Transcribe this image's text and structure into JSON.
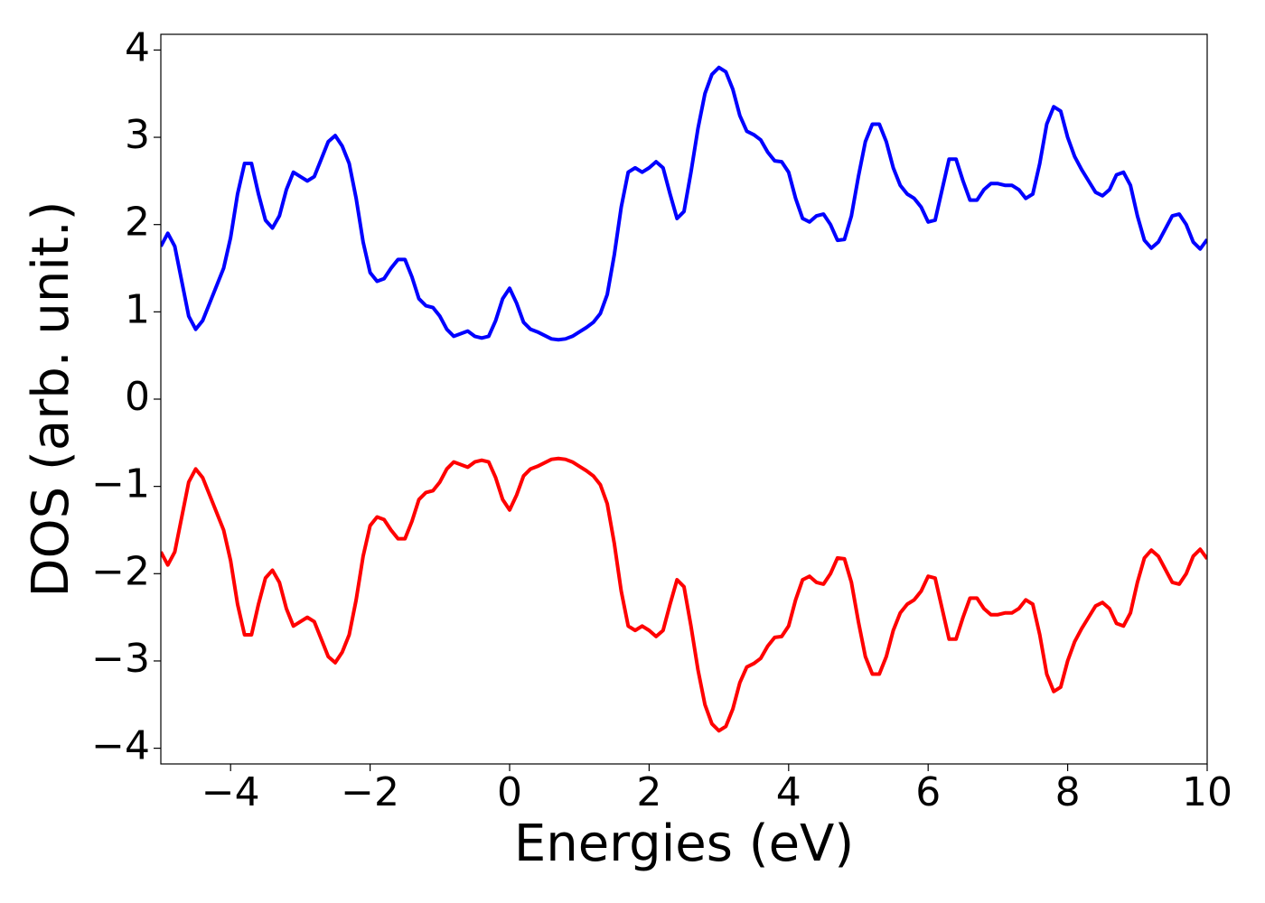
{
  "chart_data": {
    "type": "line",
    "x_label": "Energies (eV)",
    "y_label": "DOS (arb. unit.)",
    "x": [
      -5,
      -4.9,
      -4.8,
      -4.7,
      -4.6,
      -4.5,
      -4.4,
      -4.3,
      -4.2,
      -4.1,
      -4,
      -3.9,
      -3.8,
      -3.7,
      -3.6,
      -3.5,
      -3.4,
      -3.3,
      -3.2,
      -3.1,
      -3,
      -2.9,
      -2.8,
      -2.7,
      -2.6,
      -2.5,
      -2.4,
      -2.3,
      -2.2,
      -2.1,
      -2,
      -1.9,
      -1.8,
      -1.7,
      -1.6,
      -1.5,
      -1.4,
      -1.3,
      -1.2,
      -1.1,
      -1,
      -0.9,
      -0.8,
      -0.7,
      -0.6,
      -0.5,
      -0.4,
      -0.3,
      -0.2,
      -0.1,
      0,
      0.1,
      0.2,
      0.3,
      0.4,
      0.5,
      0.6,
      0.7,
      0.8,
      0.9,
      1,
      1.1,
      1.2,
      1.3,
      1.4,
      1.5,
      1.6,
      1.7,
      1.8,
      1.9,
      2,
      2.1,
      2.2,
      2.3,
      2.4,
      2.5,
      2.6,
      2.7,
      2.8,
      2.9,
      3,
      3.1,
      3.2,
      3.3,
      3.4,
      3.5,
      3.6,
      3.7,
      3.8,
      3.9,
      4,
      4.1,
      4.2,
      4.3,
      4.4,
      4.5,
      4.6,
      4.7,
      4.8,
      4.9,
      5,
      5.1,
      5.2,
      5.3,
      5.4,
      5.5,
      5.6,
      5.7,
      5.8,
      5.9,
      6,
      6.1,
      6.2,
      6.3,
      6.4,
      6.5,
      6.6,
      6.7,
      6.8,
      6.9,
      7,
      7.1,
      7.2,
      7.3,
      7.4,
      7.5,
      7.6,
      7.7,
      7.8,
      7.9,
      8,
      8.1,
      8.2,
      8.3,
      8.4,
      8.5,
      8.6,
      8.7,
      8.8,
      8.9,
      9,
      9.1,
      9.2,
      9.3,
      9.4,
      9.5,
      9.6,
      9.7,
      9.8,
      9.9,
      10
    ],
    "series": [
      {
        "color": "#0000ff",
        "values": [
          1.75,
          1.9,
          1.75,
          1.35,
          0.95,
          0.8,
          0.9,
          1.1,
          1.3,
          1.5,
          1.85,
          2.35,
          2.7,
          2.7,
          2.35,
          2.05,
          1.96,
          2.1,
          2.4,
          2.6,
          2.55,
          2.5,
          2.55,
          2.75,
          2.95,
          3.02,
          2.9,
          2.7,
          2.3,
          1.8,
          1.45,
          1.35,
          1.38,
          1.5,
          1.6,
          1.6,
          1.4,
          1.15,
          1.07,
          1.05,
          0.95,
          0.8,
          0.72,
          0.75,
          0.78,
          0.72,
          0.7,
          0.72,
          0.9,
          1.15,
          1.27,
          1.1,
          0.88,
          0.8,
          0.77,
          0.73,
          0.69,
          0.68,
          0.69,
          0.72,
          0.77,
          0.82,
          0.88,
          0.98,
          1.2,
          1.65,
          2.2,
          2.6,
          2.65,
          2.6,
          2.65,
          2.72,
          2.65,
          2.35,
          2.07,
          2.15,
          2.6,
          3.1,
          3.5,
          3.72,
          3.8,
          3.75,
          3.55,
          3.25,
          3.07,
          3.03,
          2.97,
          2.83,
          2.73,
          2.72,
          2.6,
          2.3,
          2.07,
          2.03,
          2.1,
          2.12,
          2,
          1.82,
          1.83,
          2.1,
          2.55,
          2.95,
          3.15,
          3.15,
          2.95,
          2.65,
          2.45,
          2.35,
          2.3,
          2.2,
          2.03,
          2.05,
          2.4,
          2.75,
          2.75,
          2.5,
          2.28,
          2.28,
          2.4,
          2.47,
          2.47,
          2.45,
          2.45,
          2.4,
          2.3,
          2.35,
          2.7,
          3.15,
          3.35,
          3.3,
          3,
          2.78,
          2.63,
          2.5,
          2.37,
          2.33,
          2.4,
          2.57,
          2.6,
          2.45,
          2.1,
          1.82,
          1.73,
          1.8,
          1.95,
          2.1,
          2.12,
          2,
          1.8,
          1.72,
          1.83
        ]
      },
      {
        "color": "#ff0000",
        "values": [
          -1.75,
          -1.9,
          -1.75,
          -1.35,
          -0.95,
          -0.8,
          -0.9,
          -1.1,
          -1.3,
          -1.5,
          -1.85,
          -2.35,
          -2.7,
          -2.7,
          -2.35,
          -2.05,
          -1.96,
          -2.1,
          -2.4,
          -2.6,
          -2.55,
          -2.5,
          -2.55,
          -2.75,
          -2.95,
          -3.02,
          -2.9,
          -2.7,
          -2.3,
          -1.8,
          -1.45,
          -1.35,
          -1.38,
          -1.5,
          -1.6,
          -1.6,
          -1.4,
          -1.15,
          -1.07,
          -1.05,
          -0.95,
          -0.8,
          -0.72,
          -0.75,
          -0.78,
          -0.72,
          -0.7,
          -0.72,
          -0.9,
          -1.15,
          -1.27,
          -1.1,
          -0.88,
          -0.8,
          -0.77,
          -0.73,
          -0.69,
          -0.68,
          -0.69,
          -0.72,
          -0.77,
          -0.82,
          -0.88,
          -0.98,
          -1.2,
          -1.65,
          -2.2,
          -2.6,
          -2.65,
          -2.6,
          -2.65,
          -2.72,
          -2.65,
          -2.35,
          -2.07,
          -2.15,
          -2.6,
          -3.1,
          -3.5,
          -3.72,
          -3.8,
          -3.75,
          -3.55,
          -3.25,
          -3.07,
          -3.03,
          -2.97,
          -2.83,
          -2.73,
          -2.72,
          -2.6,
          -2.3,
          -2.07,
          -2.03,
          -2.1,
          -2.12,
          -2,
          -1.82,
          -1.83,
          -2.1,
          -2.55,
          -2.95,
          -3.15,
          -3.15,
          -2.95,
          -2.65,
          -2.45,
          -2.35,
          -2.3,
          -2.2,
          -2.03,
          -2.05,
          -2.4,
          -2.75,
          -2.75,
          -2.5,
          -2.28,
          -2.28,
          -2.4,
          -2.47,
          -2.47,
          -2.45,
          -2.45,
          -2.4,
          -2.3,
          -2.35,
          -2.7,
          -3.15,
          -3.35,
          -3.3,
          -3,
          -2.78,
          -2.63,
          -2.5,
          -2.37,
          -2.33,
          -2.4,
          -2.57,
          -2.6,
          -2.45,
          -2.1,
          -1.82,
          -1.73,
          -1.8,
          -1.95,
          -2.1,
          -2.12,
          -2,
          -1.8,
          -1.72,
          -1.83
        ]
      }
    ],
    "xlim": [
      -5,
      10
    ],
    "xticks": [
      {
        "value": -4,
        "label": "−4"
      },
      {
        "value": -2,
        "label": "−2"
      },
      0,
      2,
      4,
      6,
      8,
      10
    ],
    "ylim": [
      -4.18,
      4.18
    ],
    "yticks": [
      {
        "value": -4,
        "label": "−4"
      },
      {
        "value": -3,
        "label": "−3"
      },
      {
        "value": -2,
        "label": "−2"
      },
      {
        "value": -1,
        "label": "−1"
      },
      0,
      1,
      2,
      3,
      4
    ],
    "grid": false
  }
}
